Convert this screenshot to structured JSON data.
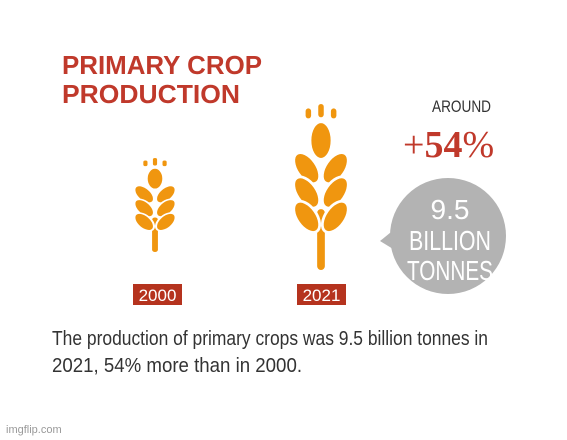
{
  "title": {
    "lines": [
      "PRIMARY CROP",
      "PRODUCTION"
    ]
  },
  "years": [
    "2000",
    "2021"
  ],
  "highlight": {
    "label": "AROUND",
    "sign": "+",
    "value": "54",
    "unit": "%"
  },
  "bubble": {
    "lines": [
      "9.5",
      "BILLION",
      "TONNES"
    ]
  },
  "caption": {
    "lines": [
      "The production of primary crops was 9.5 billion tonnes in",
      "2021, 54% more than in 2000."
    ]
  },
  "watermark": "imgflip.com"
}
